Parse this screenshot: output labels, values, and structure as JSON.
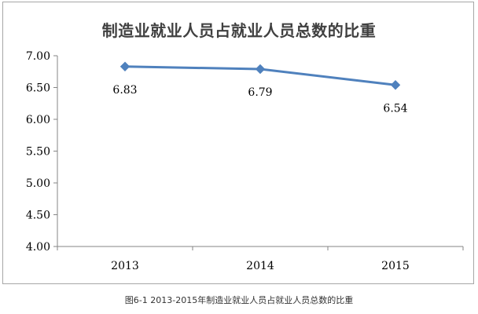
{
  "chart_data": {
    "type": "line",
    "title": "制造业就业人员占就业人员总数的比重",
    "categories": [
      "2013",
      "2014",
      "2015"
    ],
    "series": [
      {
        "values": [
          6.83,
          6.79,
          6.54
        ]
      }
    ],
    "data_labels": [
      "6.83",
      "6.79",
      "6.54"
    ],
    "y_ticks": [
      "4.00",
      "4.50",
      "5.00",
      "5.50",
      "6.00",
      "6.50",
      "7.00"
    ],
    "ylim": [
      4.0,
      7.0
    ],
    "xlabel": "",
    "ylabel": "",
    "grid": false,
    "legend": "none",
    "line_color": "#4f81bd"
  },
  "caption": "图6-1 2013-2015年制造业就业人员占就业人员总数的比重"
}
